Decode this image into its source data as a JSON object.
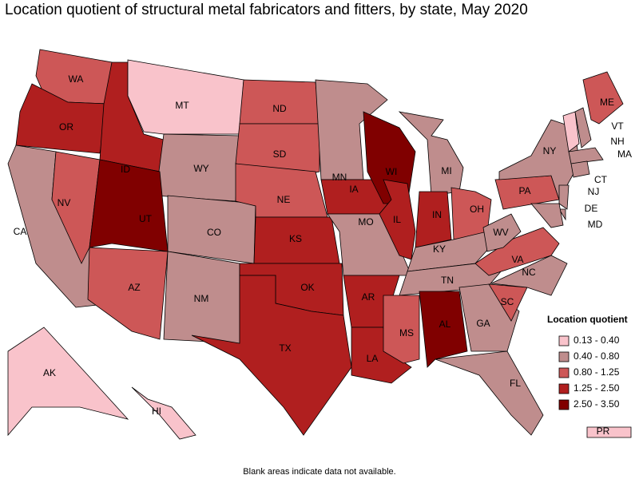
{
  "title": "Location quotient of structural metal fabricators and fitters, by state, May 2020",
  "footnote": "Blank areas indicate data not available.",
  "legend": {
    "title": "Location quotient",
    "entries": [
      {
        "label": "0.13 - 0.40",
        "color": "#f9c3cb"
      },
      {
        "label": "0.40 - 0.80",
        "color": "#bf8d8d"
      },
      {
        "label": "0.80 - 1.25",
        "color": "#cd5757"
      },
      {
        "label": "1.25 - 2.50",
        "color": "#b01f1f"
      },
      {
        "label": "2.50 - 3.50",
        "color": "#800000"
      }
    ]
  },
  "states": [
    {
      "label": "WA",
      "class": 2
    },
    {
      "label": "OR",
      "class": 3
    },
    {
      "label": "CA",
      "class": 1
    },
    {
      "label": "NV",
      "class": 2
    },
    {
      "label": "ID",
      "class": 3
    },
    {
      "label": "MT",
      "class": 0
    },
    {
      "label": "WY",
      "class": 1
    },
    {
      "label": "UT",
      "class": 4
    },
    {
      "label": "CO",
      "class": 1
    },
    {
      "label": "AZ",
      "class": 2
    },
    {
      "label": "NM",
      "class": 1
    },
    {
      "label": "ND",
      "class": 2
    },
    {
      "label": "SD",
      "class": 2
    },
    {
      "label": "NE",
      "class": 2
    },
    {
      "label": "KS",
      "class": 3
    },
    {
      "label": "OK",
      "class": 3
    },
    {
      "label": "TX",
      "class": 3
    },
    {
      "label": "MN",
      "class": 1
    },
    {
      "label": "IA",
      "class": 3
    },
    {
      "label": "MO",
      "class": 1
    },
    {
      "label": "AR",
      "class": 3
    },
    {
      "label": "LA",
      "class": 3
    },
    {
      "label": "WI",
      "class": 4
    },
    {
      "label": "IL",
      "class": 3
    },
    {
      "label": "MI",
      "class": 1
    },
    {
      "label": "IN",
      "class": 3
    },
    {
      "label": "OH",
      "class": 2
    },
    {
      "label": "KY",
      "class": 1
    },
    {
      "label": "TN",
      "class": 1
    },
    {
      "label": "MS",
      "class": 2
    },
    {
      "label": "AL",
      "class": 4
    },
    {
      "label": "GA",
      "class": 1
    },
    {
      "label": "FL",
      "class": 1
    },
    {
      "label": "SC",
      "class": 2
    },
    {
      "label": "NC",
      "class": 1
    },
    {
      "label": "VA",
      "class": 2
    },
    {
      "label": "WV",
      "class": 1
    },
    {
      "label": "PA",
      "class": 2
    },
    {
      "label": "NY",
      "class": 1
    },
    {
      "label": "ME",
      "class": 2
    },
    {
      "label": "VT",
      "class": 0
    },
    {
      "label": "NH",
      "class": 1
    },
    {
      "label": "MA",
      "class": 1
    },
    {
      "label": "CT",
      "class": 1
    },
    {
      "label": "NJ",
      "class": 1
    },
    {
      "label": "DE",
      "class": 1
    },
    {
      "label": "MD",
      "class": 1
    },
    {
      "label": "AK",
      "class": 0
    },
    {
      "label": "HI",
      "class": 0
    },
    {
      "label": "PR",
      "class": 0
    }
  ]
}
